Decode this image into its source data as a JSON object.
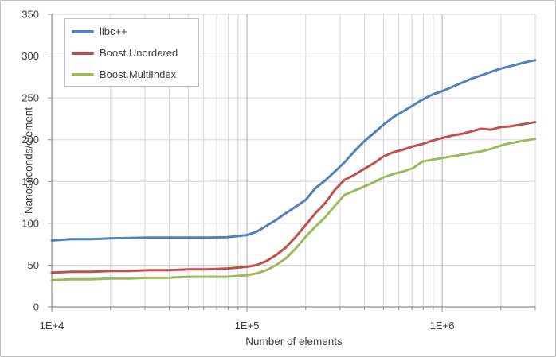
{
  "chart_data": {
    "type": "line",
    "title": "",
    "x_axis": {
      "label": "Number of elements",
      "scale": "log",
      "min": 10000,
      "max": 3000000,
      "ticks": [
        {
          "label": "1E+4",
          "value": 10000
        },
        {
          "label": "1E+5",
          "value": 100000
        },
        {
          "label": "1E+6",
          "value": 1000000
        }
      ]
    },
    "y_axis": {
      "label": "Nanoseconds/element",
      "min": 0,
      "max": 350,
      "step": 50,
      "tick_labels": [
        "0",
        "50",
        "100",
        "150",
        "200",
        "250",
        "300",
        "350"
      ]
    },
    "grid": true,
    "legend_position": "top-left",
    "x": [
      10000,
      12600,
      15800,
      20000,
      25100,
      31600,
      39800,
      50100,
      63100,
      79400,
      100000,
      112000,
      126000,
      141000,
      158000,
      178000,
      200000,
      224000,
      251000,
      282000,
      316000,
      355000,
      398000,
      447000,
      501000,
      562000,
      631000,
      708000,
      794000,
      891000,
      1000000,
      1122000,
      1259000,
      1413000,
      1585000,
      1778000,
      1995000,
      2239000,
      2512000,
      2818000,
      3000000
    ],
    "series": [
      {
        "name": "libc++",
        "color": "#4F81BD",
        "values": [
          79.5,
          81,
          81,
          82,
          82.5,
          83,
          83,
          83,
          83,
          83.5,
          86,
          90,
          97,
          104,
          112,
          120,
          128,
          142,
          151,
          162,
          173,
          186,
          198,
          208,
          218,
          227,
          234,
          241,
          248,
          254,
          258,
          263,
          268,
          273,
          277,
          281,
          285,
          288,
          291,
          294,
          295
        ]
      },
      {
        "name": "Boost.Unordered",
        "color": "#C0504D",
        "values": [
          41,
          42,
          42,
          43,
          43,
          44,
          44,
          45,
          45,
          46,
          48,
          50,
          55,
          62,
          71,
          84,
          98,
          112,
          124,
          140,
          152,
          158,
          165,
          172,
          180,
          185,
          188,
          192,
          195,
          199,
          202,
          205,
          207,
          210,
          213,
          212,
          215,
          216,
          218,
          220,
          221
        ]
      },
      {
        "name": "Boost.MultiIndex",
        "color": "#9BBB59",
        "values": [
          32,
          33,
          33,
          34,
          34,
          35,
          35,
          36,
          36,
          36,
          38,
          40,
          44,
          50,
          58,
          70,
          84,
          96,
          107,
          121,
          134,
          139,
          144,
          149,
          155,
          159,
          162,
          166,
          174,
          176,
          178,
          180,
          182,
          184,
          186,
          189,
          193,
          196,
          198,
          200,
          201
        ]
      }
    ],
    "style": {
      "background": "#ffffff",
      "grid_color": "#d6d6d6",
      "major_grid_color": "#ababab",
      "axis_color": "#8e8e8e",
      "text_color": "#3f3f3f",
      "frame_border_color": "#bdbdbd",
      "legend_border_color": "#bfbfbf",
      "line_width": 3
    }
  }
}
